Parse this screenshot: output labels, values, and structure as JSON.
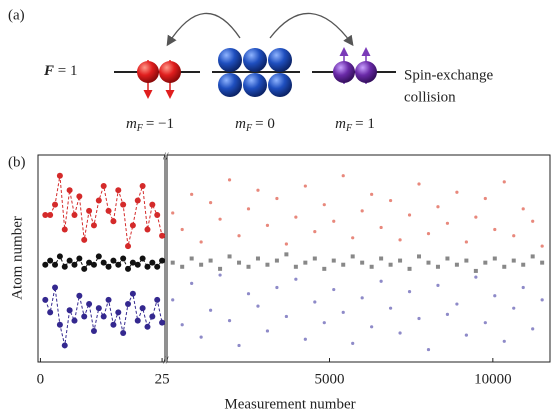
{
  "panel_a": {
    "label": "(a)",
    "f_symbol": "F",
    "f_value": "= 1",
    "states": [
      {
        "symbol": "m",
        "subscript": "F",
        "value": "= −1"
      },
      {
        "symbol": "m",
        "subscript": "F",
        "value": "= 0"
      },
      {
        "symbol": "m",
        "subscript": "F",
        "value": "= 1"
      }
    ],
    "process": [
      "Spin-exchange",
      "collision"
    ]
  },
  "chart_data": [
    {
      "type": "line",
      "panel_label": "(b)",
      "y_label": "Atom number",
      "line_style": "dashed",
      "x": [
        1,
        2,
        3,
        4,
        5,
        6,
        7,
        8,
        9,
        10,
        11,
        12,
        13,
        14,
        15,
        16,
        17,
        18,
        19,
        20,
        21,
        22,
        23,
        24,
        25
      ],
      "xlim": [
        -0.5,
        25.6
      ],
      "xticks": [
        0,
        25
      ],
      "ylim": [
        0,
        100
      ],
      "series": [
        {
          "color": "#d42a2a",
          "values": [
            71,
            71,
            76,
            90,
            64,
            83,
            71,
            80,
            59,
            73,
            66,
            78,
            85,
            73,
            68,
            83,
            76,
            56,
            66,
            78,
            85,
            64,
            76,
            71,
            61
          ]
        },
        {
          "color": "#111111",
          "values": [
            47,
            49,
            47,
            51,
            46,
            49,
            47,
            50,
            45,
            48,
            47,
            51,
            48,
            46,
            49,
            47,
            50,
            45,
            48,
            47,
            50,
            46,
            48,
            46,
            49
          ]
        },
        {
          "color": "#34288f",
          "values": [
            30,
            24,
            36,
            18,
            8,
            25,
            20,
            32,
            22,
            28,
            15,
            26,
            22,
            30,
            18,
            24,
            14,
            28,
            33,
            20,
            26,
            17,
            22,
            30,
            19
          ]
        }
      ]
    },
    {
      "type": "scatter",
      "x_label": "Measurement number",
      "x": [
        200,
        490,
        780,
        1070,
        1360,
        1650,
        1940,
        2230,
        2520,
        2810,
        3100,
        3390,
        3680,
        3970,
        4260,
        4550,
        4840,
        5130,
        5420,
        5710,
        6000,
        6290,
        6580,
        6870,
        7160,
        7450,
        7740,
        8030,
        8320,
        8610,
        8900,
        9190,
        9480,
        9770,
        10060,
        10350,
        10640,
        10930,
        11220,
        11510
      ],
      "xlim": [
        25,
        11750
      ],
      "xticks": [
        5000,
        10000
      ],
      "ylim": [
        0,
        100
      ],
      "series": [
        {
          "color": "#e8887c",
          "values": [
            72,
            64,
            81,
            58,
            77,
            69,
            88,
            61,
            74,
            83,
            66,
            79,
            57,
            70,
            85,
            63,
            76,
            68,
            90,
            60,
            73,
            81,
            65,
            78,
            59,
            71,
            86,
            62,
            75,
            67,
            82,
            58,
            70,
            79,
            64,
            87,
            61,
            74,
            68,
            56
          ]
        },
        {
          "color": "#888888",
          "marker": "square",
          "values": [
            48,
            46,
            50,
            47,
            49,
            45,
            51,
            48,
            46,
            50,
            47,
            49,
            52,
            46,
            48,
            50,
            45,
            49,
            47,
            51,
            48,
            46,
            50,
            47,
            49,
            45,
            51,
            48,
            46,
            50,
            47,
            49,
            44,
            48,
            50,
            46,
            49,
            47,
            51,
            48
          ]
        },
        {
          "color": "#8e8ac8",
          "values": [
            30,
            18,
            38,
            12,
            25,
            42,
            20,
            8,
            33,
            27,
            15,
            36,
            22,
            40,
            11,
            29,
            19,
            35,
            24,
            9,
            31,
            17,
            39,
            26,
            14,
            34,
            21,
            6,
            37,
            23,
            28,
            13,
            41,
            19,
            32,
            10,
            26,
            36,
            16,
            30
          ]
        }
      ]
    }
  ]
}
